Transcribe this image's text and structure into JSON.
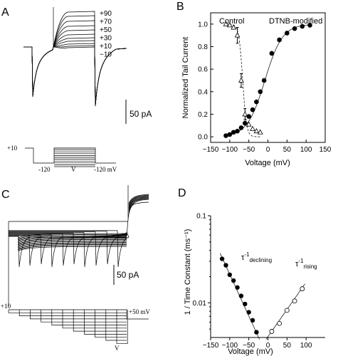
{
  "panels": {
    "a": {
      "letter": "A",
      "trace_labels": [
        "+90",
        "+70",
        "+50",
        "+30",
        "+10",
        "−10"
      ],
      "scale_bar_label": "50 pA",
      "protocol": {
        "hold": "+10",
        "pre": "-120",
        "step": "V",
        "post": "-120 mV"
      }
    },
    "b": {
      "letter": "B"
    },
    "c": {
      "letter": "C",
      "scale_bar_label": "50 pA",
      "protocol": {
        "hold": "+10",
        "end": "+50 mV",
        "step": "V"
      }
    },
    "d": {
      "letter": "D"
    }
  },
  "chart_data": [
    {
      "panel": "B",
      "type": "scatter",
      "xlabel": "Voltage (mV)",
      "ylabel": "Normalized Tail Current",
      "xlim": [
        -150,
        150
      ],
      "ylim": [
        -0.05,
        1.1
      ],
      "xticks": [
        -150,
        -100,
        -50,
        0,
        50,
        100,
        150
      ],
      "yticks": [
        0.0,
        0.2,
        0.4,
        0.6,
        0.8,
        1.0
      ],
      "grid": false,
      "series": [
        {
          "name": "Control",
          "marker": "open-triangle",
          "line": "dashed",
          "x": [
            -110,
            -100,
            -90,
            -80,
            -70,
            -60,
            -50,
            -40,
            -30,
            -20
          ],
          "y": [
            1.0,
            0.99,
            0.97,
            0.9,
            0.5,
            0.2,
            0.11,
            0.07,
            0.05,
            0.04
          ],
          "error": [
            0,
            0,
            0,
            0.07,
            0.06,
            0.05,
            0,
            0,
            0,
            0
          ]
        },
        {
          "name": "DTNB-modified",
          "marker": "filled-circle",
          "line": "solid",
          "x": [
            -110,
            -100,
            -90,
            -80,
            -70,
            -60,
            -50,
            -40,
            -30,
            -20,
            -10,
            10,
            30,
            50,
            70,
            90,
            110
          ],
          "y": [
            0.01,
            0.02,
            0.04,
            0.05,
            0.08,
            0.12,
            0.18,
            0.24,
            0.31,
            0.4,
            0.5,
            0.74,
            0.86,
            0.92,
            0.96,
            0.98,
            0.99
          ]
        }
      ]
    },
    {
      "panel": "D",
      "type": "scatter",
      "xlabel": "Voltage (mV)",
      "ylabel": "1 / Time Constant (ms⁻¹)",
      "xlim": [
        -150,
        150
      ],
      "ylim": [
        0.004,
        0.1
      ],
      "yscale": "log",
      "xticks": [
        -150,
        -100,
        -50,
        0,
        50,
        100
      ],
      "yticks": [
        0.01,
        0.1
      ],
      "ytick_labels": [
        "0.01",
        "0.1"
      ],
      "grid": false,
      "series": [
        {
          "name": "τ⁻¹ declining",
          "marker": "filled-circle",
          "x": [
            -120,
            -110,
            -100,
            -90,
            -80,
            -70,
            -60,
            -50,
            -40,
            -30
          ],
          "y": [
            0.032,
            0.027,
            0.021,
            0.018,
            0.015,
            0.012,
            0.0097,
            0.0078,
            0.0063,
            0.0046
          ]
        },
        {
          "name": "τ⁻¹ rising",
          "marker": "open-circle",
          "x": [
            10,
            30,
            50,
            70,
            90
          ],
          "y": [
            0.0047,
            0.0058,
            0.0082,
            0.0105,
            0.0145
          ]
        }
      ]
    }
  ]
}
